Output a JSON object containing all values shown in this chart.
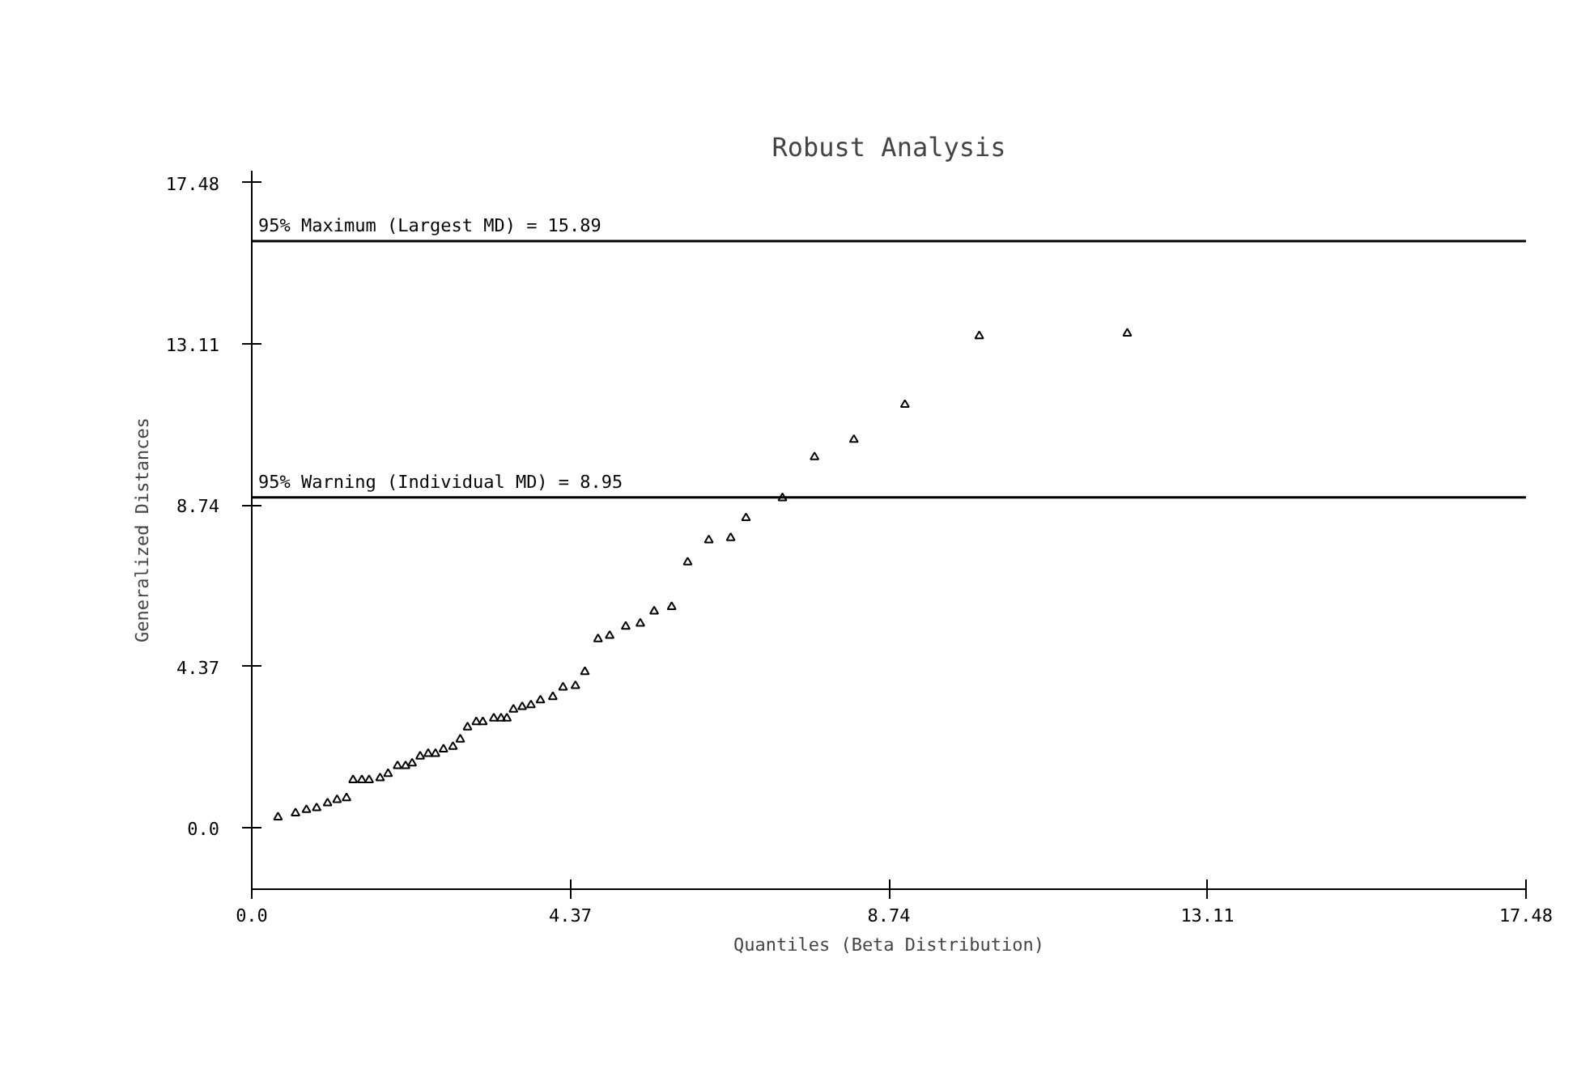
{
  "chart_data": {
    "type": "scatter",
    "title": "Robust Analysis",
    "xlabel": "Quantiles (Beta Distribution)",
    "ylabel": "Generalized Distances",
    "marker": "triangle",
    "grid": false,
    "xlim": [
      0,
      17.48
    ],
    "ylim": [
      -1.67,
      17.8
    ],
    "xticks": [
      {
        "value": 0,
        "label": "0.0"
      },
      4.37,
      8.74,
      13.11,
      17.48
    ],
    "yticks": [
      {
        "value": 0,
        "label": "0.0"
      },
      4.37,
      8.74,
      13.11,
      17.48
    ],
    "ref_lines": [
      {
        "axis": "y",
        "value": 15.89,
        "label": "95% Maximum (Largest MD) = 15.89",
        "color": "#000000"
      },
      {
        "axis": "y",
        "value": 8.95,
        "label": "95% Warning (Individual MD) = 8.95",
        "color": "#000000"
      }
    ],
    "series": [
      {
        "color": "#000000",
        "x": [
          0.36,
          0.6,
          0.75,
          0.89,
          1.04,
          1.17,
          1.3,
          1.39,
          1.51,
          1.61,
          1.76,
          1.87,
          2.0,
          2.11,
          2.2,
          2.31,
          2.42,
          2.52,
          2.63,
          2.76,
          2.86,
          2.96,
          3.08,
          3.17,
          3.32,
          3.42,
          3.5,
          3.59,
          3.71,
          3.83,
          3.96,
          4.13,
          4.27,
          4.44,
          4.57,
          4.75,
          4.91,
          5.13,
          5.33,
          5.52,
          5.76,
          5.98,
          6.27,
          6.57,
          6.78,
          7.28,
          7.72,
          8.26,
          8.96,
          9.98,
          12.01
        ],
        "values": [
          0.28,
          0.39,
          0.48,
          0.53,
          0.66,
          0.75,
          0.8,
          1.29,
          1.29,
          1.29,
          1.34,
          1.46,
          1.67,
          1.67,
          1.74,
          1.93,
          2.0,
          2.0,
          2.12,
          2.19,
          2.39,
          2.72,
          2.86,
          2.86,
          2.96,
          2.96,
          2.96,
          3.2,
          3.27,
          3.32,
          3.45,
          3.54,
          3.8,
          3.84,
          4.22,
          5.11,
          5.2,
          5.45,
          5.53,
          5.86,
          5.98,
          7.19,
          7.79,
          7.85,
          8.39,
          8.93,
          10.04,
          10.51,
          11.46,
          13.32,
          13.39
        ]
      }
    ]
  }
}
